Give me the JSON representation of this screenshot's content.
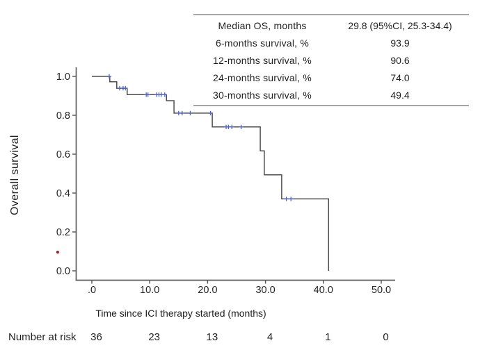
{
  "summary_table": {
    "rows": [
      {
        "label": "Median OS, months",
        "value": "29.8 (95%CI, 25.3-34.4)"
      },
      {
        "label": "6-months survival, %",
        "value": "93.9"
      },
      {
        "label": "12-months survival, %",
        "value": "90.6"
      },
      {
        "label": "24-months survival, %",
        "value": "74.0"
      },
      {
        "label": "30-months survival, %",
        "value": "49.4"
      }
    ]
  },
  "chart_data": {
    "type": "line",
    "subtype": "kaplan_meier_step",
    "title": "",
    "xlabel": "Time since ICI therapy started (months)",
    "ylabel": "Overall survival",
    "xlim": [
      0,
      52
    ],
    "ylim": [
      0,
      1.0
    ],
    "grid": false,
    "x_ticks": [
      0,
      10,
      20,
      30,
      40,
      50
    ],
    "x_tick_labels": [
      ".0",
      "10.0",
      "20.0",
      "30.0",
      "40.0",
      "50.0"
    ],
    "y_ticks": [
      1.0,
      0.8,
      0.6,
      0.4,
      0.2,
      0.0
    ],
    "y_tick_labels": [
      "1.0",
      "0.8",
      "0.6",
      "0.4",
      "0.2",
      "0.0"
    ],
    "axis_color": "#5c5c5c",
    "curve_color": "#4d4d4d",
    "censor_color": "#5565b8",
    "steps": [
      {
        "t": 0,
        "s": 1.0
      },
      {
        "t": 3.1,
        "s": 0.972
      },
      {
        "t": 4.3,
        "s": 0.939
      },
      {
        "t": 6.1,
        "s": 0.906
      },
      {
        "t": 12.9,
        "s": 0.875
      },
      {
        "t": 14.2,
        "s": 0.811
      },
      {
        "t": 20.8,
        "s": 0.74
      },
      {
        "t": 29.1,
        "s": 0.617
      },
      {
        "t": 29.8,
        "s": 0.494
      },
      {
        "t": 32.8,
        "s": 0.37
      },
      {
        "t": 40.9,
        "s": 0.0
      }
    ],
    "censor_marks": [
      {
        "t": 3.0,
        "s": 1.0
      },
      {
        "t": 4.8,
        "s": 0.939
      },
      {
        "t": 5.4,
        "s": 0.939
      },
      {
        "t": 5.8,
        "s": 0.939
      },
      {
        "t": 9.4,
        "s": 0.906
      },
      {
        "t": 9.7,
        "s": 0.906
      },
      {
        "t": 11.2,
        "s": 0.906
      },
      {
        "t": 11.6,
        "s": 0.906
      },
      {
        "t": 12.0,
        "s": 0.906
      },
      {
        "t": 12.6,
        "s": 0.906
      },
      {
        "t": 15.0,
        "s": 0.811
      },
      {
        "t": 15.6,
        "s": 0.811
      },
      {
        "t": 17.0,
        "s": 0.811
      },
      {
        "t": 20.5,
        "s": 0.811
      },
      {
        "t": 23.2,
        "s": 0.74
      },
      {
        "t": 23.6,
        "s": 0.74
      },
      {
        "t": 24.2,
        "s": 0.74
      },
      {
        "t": 25.8,
        "s": 0.74
      },
      {
        "t": 33.6,
        "s": 0.37
      },
      {
        "t": 34.4,
        "s": 0.37
      }
    ],
    "stray_point": {
      "t": -5.9,
      "s": 0.096,
      "color": "#9b1b1b"
    }
  },
  "number_at_risk": {
    "label": "Number at risk",
    "times": [
      0,
      10,
      20,
      30,
      40,
      50
    ],
    "values": [
      "36",
      "23",
      "13",
      "4",
      "1",
      "0"
    ]
  }
}
